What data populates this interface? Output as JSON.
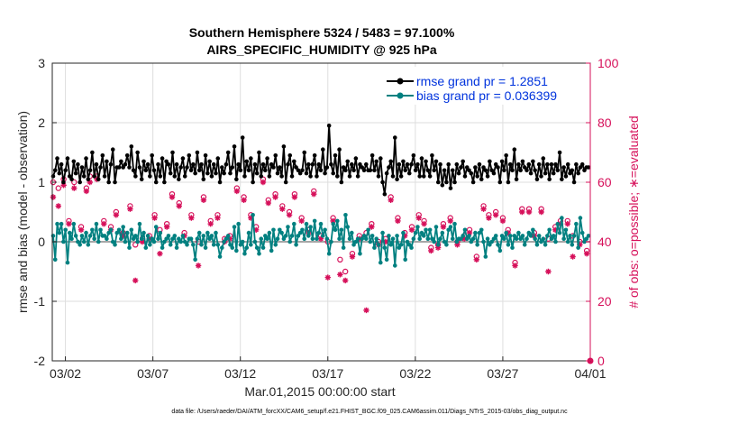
{
  "chart_data": {
    "type": "line",
    "title": "Southern Hemisphere 5324 / 5483 = 97.100%",
    "subtitle": "AIRS_SPECIFIC_HUMIDITY @ 925 hPa",
    "xlabel": "Mar.01,2015 00:00:00 start",
    "ylabel_left": "rmse and bias (model - observation)",
    "ylabel_right": "# of obs: o=possible; ∗=evaluated",
    "footer": "data file: /Users/raeder/DAI/ATM_forcXX/CAM6_setup/f.e21.FHIST_BGC.f09_025.CAM6assim.011/Diags_NTrS_2015-03/obs_diag_output.nc",
    "x_ticks": [
      "03/02",
      "03/07",
      "03/12",
      "03/17",
      "03/22",
      "03/27",
      "04/01"
    ],
    "x_tick_days": [
      1,
      6,
      11,
      16,
      21,
      26,
      31
    ],
    "x_range_days": [
      0.25,
      31
    ],
    "y_left_ticks": [
      "-2",
      "-1",
      "0",
      "1",
      "2",
      "3"
    ],
    "y_left_range": [
      -2,
      3
    ],
    "y_right_ticks": [
      "0",
      "20",
      "40",
      "60",
      "80",
      "100"
    ],
    "y_right_range": [
      0,
      100
    ],
    "grid": true,
    "legend_position": "top-right",
    "colors": {
      "rmse": "#000000",
      "bias": "#008080",
      "obs": "#d6105a",
      "zero_line": "#a6a6a6",
      "grid": "#dedede",
      "legend_text": "#0033dd"
    },
    "series": [
      {
        "name": "rmse grand pr = 1.2851",
        "axis": "left",
        "values": [
          1.1,
          1.2,
          1.4,
          1.15,
          1.3,
          1.0,
          1.2,
          1.4,
          1.1,
          1.05,
          1.35,
          1.15,
          1.3,
          1.0,
          1.25,
          1.1,
          1.4,
          1.05,
          1.2,
          1.5,
          1.1,
          1.3,
          1.05,
          1.25,
          1.45,
          1.1,
          1.35,
          1.0,
          1.3,
          1.55,
          1.0,
          1.25,
          1.25,
          1.35,
          1.25,
          1.3,
          1.45,
          1.25,
          1.6,
          1.2,
          1.1,
          1.5,
          1.25,
          1.05,
          1.35,
          1.2,
          1.3,
          1.1,
          1.45,
          1.2,
          1.0,
          1.3,
          1.1,
          1.4,
          1.0,
          1.35,
          1.3,
          1.15,
          1.5,
          1.1,
          1.3,
          1.05,
          1.25,
          1.4,
          1.1,
          1.25,
          1.45,
          1.2,
          1.3,
          1.15,
          1.5,
          1.2,
          1.3,
          1.05,
          1.45,
          1.15,
          1.35,
          1.1,
          1.3,
          1.15,
          1.4,
          1.0,
          1.25,
          1.15,
          1.3,
          1.5,
          1.15,
          1.25,
          1.6,
          1.05,
          1.3,
          1.2,
          1.75,
          1.1,
          1.35,
          1.2,
          1.4,
          1.0,
          1.3,
          1.15,
          1.5,
          1.1,
          1.3,
          1.2,
          1.4,
          1.1,
          1.3,
          1.25,
          1.45,
          1.15,
          1.25,
          1.1,
          1.6,
          1.0,
          1.3,
          1.45,
          1.1,
          1.35,
          1.25,
          1.2,
          1.15,
          1.2,
          1.5,
          1.15,
          1.3,
          1.1,
          1.3,
          1.45,
          1.1,
          1.3,
          1.2,
          1.55,
          1.15,
          1.25,
          1.95,
          1.3,
          1.15,
          1.45,
          1.1,
          1.55,
          1.0,
          1.25,
          1.2,
          1.35,
          1.1,
          1.3,
          1.2,
          1.4,
          1.1,
          1.3,
          1.25,
          1.2,
          1.3,
          1.2,
          1.2,
          1.45,
          1.2,
          1.35,
          1.1,
          1.4,
          1.0,
          0.8,
          1.15,
          1.25,
          1.35,
          1.1,
          1.75,
          1.05,
          1.3,
          1.1,
          1.35,
          1.2,
          1.3,
          1.15,
          1.3,
          1.45,
          1.2,
          1.3,
          1.1,
          1.4,
          1.1,
          1.35,
          1.2,
          1.1,
          1.45,
          1.2,
          1.35,
          1.0,
          1.3,
          0.95,
          1.2,
          1.0,
          1.3,
          0.9,
          1.2,
          1.0,
          1.3,
          1.15,
          1.25,
          1.35,
          1.1,
          1.25,
          1.2,
          1.15,
          1.0,
          1.25,
          1.1,
          1.3,
          1.05,
          1.25,
          1.2,
          1.1,
          1.35,
          1.2,
          1.15,
          1.3,
          1.25,
          1.0,
          1.35,
          1.2,
          1.45,
          1.0,
          1.3,
          1.2,
          1.55,
          1.05,
          1.3,
          1.2,
          1.35,
          1.25,
          1.2,
          1.3,
          1.15,
          1.35,
          1.2,
          1.05,
          1.3,
          1.1,
          1.4,
          1.15,
          1.3,
          1.05,
          1.3,
          1.15,
          1.3,
          1.2,
          1.5,
          1.05,
          1.25,
          1.1,
          1.3,
          1.15,
          1.2,
          1.0,
          1.3,
          1.15,
          1.25,
          1.3,
          1.2,
          1.25,
          1.25
        ]
      },
      {
        "name": "bias grand pr = 0.036399",
        "axis": "left",
        "values": [
          0.1,
          -0.3,
          0.3,
          0.15,
          0.3,
          0.0,
          0.2,
          -0.35,
          0.15,
          0.05,
          0.3,
          0.1,
          0.0,
          -0.05,
          0.1,
          0.0,
          0.15,
          -0.05,
          0.1,
          0.2,
          0.05,
          0.3,
          0.0,
          0.2,
          0.1,
          0.1,
          0.05,
          0.15,
          0.2,
          0.0,
          -0.05,
          0.15,
          0.2,
          0.05,
          0.25,
          0.0,
          0.15,
          -0.1,
          0.2,
          0.05,
          0.1,
          0.0,
          0.3,
          0.05,
          0.15,
          -0.1,
          0.1,
          -0.05,
          0.05,
          0.0,
          0.25,
          0.05,
          0.15,
          -0.1,
          0.0,
          0.05,
          0.1,
          -0.05,
          0.05,
          0.1,
          -0.1,
          0.05,
          0.0,
          0.1,
          0.0,
          -0.05,
          0.05,
          0.05,
          -0.05,
          -0.3,
          0.05,
          0.15,
          -0.05,
          0.1,
          -0.1,
          0.15,
          0.05,
          0.1,
          -0.05,
          0.15,
          -0.05,
          -0.25,
          -0.1,
          0.0,
          0.05,
          0.1,
          -0.05,
          -0.1,
          0.25,
          -0.15,
          0.3,
          -0.05,
          0.0,
          -0.2,
          -0.1,
          0.15,
          -0.05,
          0.45,
          0.0,
          -0.1,
          -0.2,
          0.05,
          -0.1,
          0.1,
          0.05,
          0.15,
          -0.15,
          0.2,
          -0.05,
          0.05,
          0.2,
          0.15,
          0.05,
          0.1,
          0.25,
          0.0,
          0.1,
          0.3,
          -0.05,
          0.1,
          0.15,
          0.2,
          0.05,
          0.3,
          0.1,
          0.25,
          0.05,
          0.35,
          0.05,
          0.15,
          0.3,
          0.1,
          0.2,
          0.05,
          -0.2,
          0.0,
          0.3,
          0.2,
          0.35,
          0.05,
          0.2,
          -0.1,
          0.45,
          0.25,
          0.05,
          0.15,
          -0.05,
          0.0,
          0.05,
          -0.2,
          0.05,
          0.1,
          0.05,
          0.2,
          0.0,
          0.1,
          -0.1,
          0.05,
          -0.05,
          -0.35,
          0.15,
          -0.1,
          -0.3,
          0.1,
          -0.05,
          0.05,
          -0.4,
          0.1,
          -0.1,
          -0.05,
          0.15,
          -0.3,
          0.0,
          -0.05,
          -0.1,
          0.05,
          0.15,
          0.25,
          0.05,
          0.15,
          0.1,
          0.2,
          0.05,
          0.2,
          0.05,
          0.0,
          0.25,
          -0.05,
          0.05,
          0.15,
          0.0,
          -0.05,
          0.2,
          0.25,
          0.05,
          0.3,
          0.0,
          0.05,
          0.05,
          0.1,
          0.2,
          0.05,
          0.1,
          0.0,
          0.05,
          0.15,
          -0.05,
          0.15,
          0.2,
          0.0,
          -0.25,
          0.05,
          -0.05,
          0.0,
          0.05,
          0.1,
          -0.05,
          -0.15,
          0.1,
          0.05,
          0.15,
          -0.05,
          0.1,
          -0.1,
          0.1,
          0.05,
          0.15,
          0.05,
          0.1,
          -0.05,
          0.05,
          0.15,
          0.1,
          0.2,
          0.05,
          -0.05,
          0.1,
          0.0,
          0.05,
          -0.05,
          0.1,
          0.2,
          0.05,
          0.1,
          0.0,
          0.3,
          0.15,
          0.4,
          0.05,
          0.2,
          0.0,
          0.1,
          -0.05,
          0.1,
          0.3,
          -0.1,
          0.4,
          0.15,
          0.0,
          0.05,
          0.1
        ]
      }
    ],
    "obs_possible": {
      "axis": "right",
      "x_days": [
        0.3,
        0.6,
        0.9,
        1.2,
        1.5,
        1.9,
        2.2,
        2.4,
        2.8,
        3.2,
        3.6,
        3.9,
        4.3,
        4.7,
        5.0,
        5.4,
        5.8,
        6.1,
        6.4,
        6.8,
        7.1,
        7.5,
        7.8,
        8.2,
        8.6,
        8.9,
        9.3,
        9.7,
        10.1,
        10.4,
        10.8,
        11.2,
        11.6,
        11.9,
        12.3,
        12.6,
        13.0,
        13.4,
        13.8,
        14.1,
        14.5,
        14.9,
        15.2,
        15.6,
        16.0,
        16.3,
        16.7,
        17.0,
        17.4,
        17.8,
        18.2,
        18.5,
        18.9,
        19.3,
        19.6,
        20.0,
        20.4,
        20.8,
        21.2,
        21.5,
        21.9,
        22.3,
        22.6,
        23.0,
        23.4,
        23.8,
        24.1,
        24.5,
        24.9,
        25.2,
        25.6,
        26.0,
        26.3,
        26.7,
        27.1,
        27.5,
        27.8,
        28.2,
        28.6,
        29.0,
        29.3,
        29.7,
        30.0,
        30.4,
        30.8
      ],
      "values": [
        60,
        58,
        61,
        47,
        60,
        45,
        58,
        62,
        62,
        47,
        45,
        50,
        43,
        52,
        39,
        41,
        42,
        49,
        44,
        46,
        56,
        53,
        43,
        49,
        40,
        55,
        47,
        49,
        41,
        42,
        58,
        55,
        49,
        45,
        61,
        54,
        56,
        52,
        50,
        56,
        48,
        44,
        57,
        42,
        40,
        48,
        34,
        30,
        36,
        42,
        43,
        46,
        40,
        41,
        55,
        48,
        43,
        45,
        49,
        47,
        38,
        39,
        46,
        48,
        40,
        42,
        44,
        35,
        52,
        49,
        50,
        48,
        44,
        33,
        51,
        51,
        43,
        51,
        41,
        45,
        47,
        47,
        42,
        40,
        37
      ]
    },
    "obs_evaluated": {
      "axis": "right",
      "x_days": [
        0.3,
        0.6,
        0.9,
        1.2,
        1.5,
        1.9,
        2.2,
        2.4,
        2.8,
        3.2,
        3.6,
        3.9,
        4.3,
        4.7,
        5.0,
        5.4,
        5.8,
        6.1,
        6.4,
        6.8,
        7.1,
        7.5,
        7.8,
        8.2,
        8.6,
        8.9,
        9.3,
        9.7,
        10.1,
        10.4,
        10.8,
        11.2,
        11.6,
        11.9,
        12.3,
        12.6,
        13.0,
        13.4,
        13.8,
        14.1,
        14.5,
        14.9,
        15.2,
        15.6,
        16.0,
        16.3,
        16.7,
        17.0,
        17.4,
        17.8,
        18.2,
        18.5,
        18.9,
        19.3,
        19.6,
        20.0,
        20.4,
        20.8,
        21.2,
        21.5,
        21.9,
        22.3,
        22.6,
        23.0,
        23.4,
        23.8,
        24.1,
        24.5,
        24.9,
        25.2,
        25.6,
        26.0,
        26.3,
        26.7,
        27.1,
        27.5,
        27.8,
        28.2,
        28.6,
        29.0,
        29.3,
        29.7,
        30.0,
        30.4,
        30.8
      ],
      "values": [
        55,
        52,
        59,
        46,
        58,
        44,
        57,
        60,
        61,
        46,
        44,
        49,
        42,
        51,
        27,
        40,
        41,
        48,
        36,
        45,
        55,
        52,
        42,
        48,
        32,
        54,
        46,
        48,
        40,
        41,
        57,
        54,
        48,
        44,
        60,
        53,
        55,
        51,
        49,
        55,
        47,
        43,
        56,
        41,
        28,
        47,
        29,
        27,
        35,
        41,
        17,
        45,
        39,
        40,
        54,
        47,
        42,
        44,
        48,
        46,
        37,
        38,
        45,
        47,
        39,
        41,
        43,
        34,
        51,
        48,
        49,
        47,
        43,
        32,
        50,
        50,
        42,
        50,
        30,
        44,
        46,
        46,
        35,
        39,
        36
      ]
    }
  }
}
